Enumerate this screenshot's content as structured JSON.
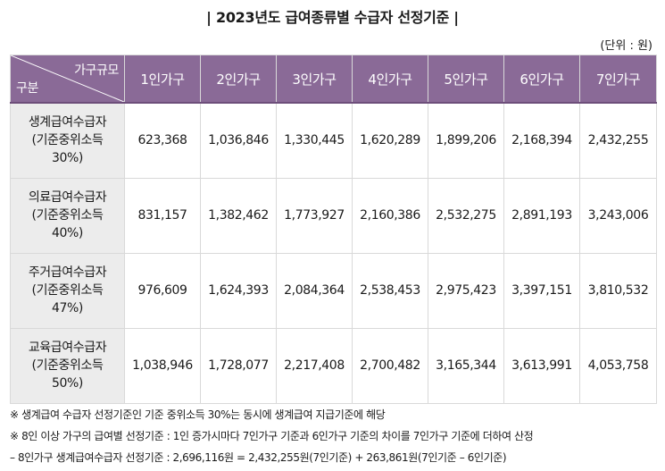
{
  "title": "| 2023년도 급여종류별 수급자 선정기준 |",
  "unit": "(단위 : 원)",
  "table": {
    "corner_top": "가구규모",
    "corner_bottom": "구분",
    "columns": [
      "1인가구",
      "2인가구",
      "3인가구",
      "4인가구",
      "5인가구",
      "6인가구",
      "7인가구"
    ],
    "rows": [
      {
        "label_lines": [
          "생계급여수급자",
          "(기준중위소득",
          "30%)"
        ],
        "values": [
          "623,368",
          "1,036,846",
          "1,330,445",
          "1,620,289",
          "1,899,206",
          "2,168,394",
          "2,432,255"
        ]
      },
      {
        "label_lines": [
          "의료급여수급자",
          "(기준중위소득",
          "40%)"
        ],
        "values": [
          "831,157",
          "1,382,462",
          "1,773,927",
          "2,160,386",
          "2,532,275",
          "2,891,193",
          "3,243,006"
        ]
      },
      {
        "label_lines": [
          "주거급여수급자",
          "(기준중위소득",
          "47%)"
        ],
        "values": [
          "976,609",
          "1,624,393",
          "2,084,364",
          "2,538,453",
          "2,975,423",
          "3,397,151",
          "3,810,532"
        ]
      },
      {
        "label_lines": [
          "교육급여수급자",
          "(기준중위소득",
          "50%)"
        ],
        "values": [
          "1,038,946",
          "1,728,077",
          "2,217,408",
          "2,700,482",
          "3,165,344",
          "3,613,991",
          "4,053,758"
        ]
      }
    ]
  },
  "notes": [
    "※ 생계급여 수급자 선정기준인 기준 중위소득 30%는 동시에 생계급여 지급기준에 해당",
    "※ 8인 이상 가구의 급여별 선정기준 : 1인 증가시마다 7인가구 기준과 6인가구 기준의 차이를 7인가구 기준에 더하여 산정",
    "  – 8인가구  생계급여수급자  선정기준 : 2,696,116원 = 2,432,255원(7인기준) + 263,861원(7인기준 – 6인기준)"
  ],
  "colors": {
    "header_bg": "#8a6a97",
    "rowhead_bg": "#ececec",
    "border": "#d9d9d9"
  }
}
